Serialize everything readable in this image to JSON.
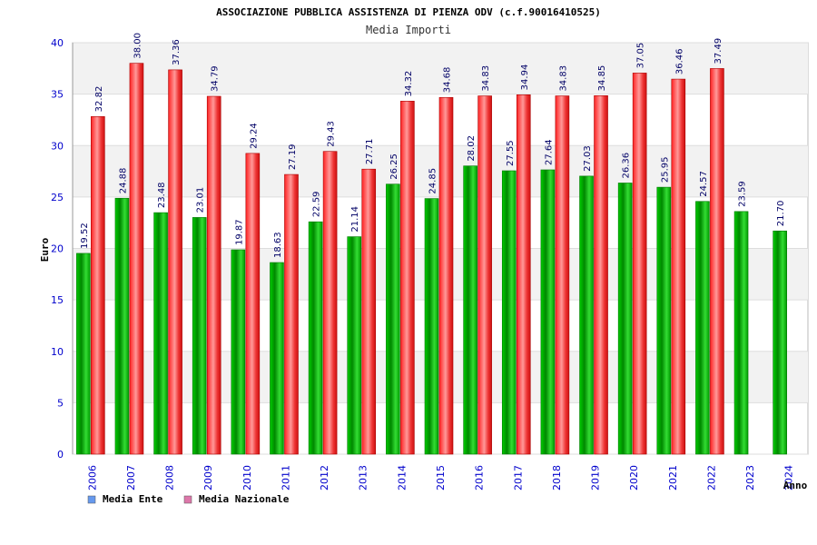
{
  "chart_data": {
    "type": "bar",
    "title": "ASSOCIAZIONE PUBBLICA ASSISTENZA DI PIENZA ODV (c.f.90016410525)",
    "subtitle": "Media Importi",
    "xlabel": "Anno",
    "ylabel": "Euro",
    "ylim": [
      0,
      40
    ],
    "yticks": [
      0,
      5,
      10,
      15,
      20,
      25,
      30,
      35,
      40
    ],
    "grid": true,
    "legend_position": "bottom-left",
    "categories": [
      "2006",
      "2007",
      "2008",
      "2009",
      "2010",
      "2011",
      "2012",
      "2013",
      "2014",
      "2015",
      "2016",
      "2017",
      "2018",
      "2019",
      "2020",
      "2021",
      "2022",
      "2023",
      "2024"
    ],
    "series": [
      {
        "name": "Media Ente",
        "legend_color": "#6699ee",
        "bar_color": "#00aa00",
        "values": [
          19.52,
          24.88,
          23.48,
          23.01,
          19.87,
          18.63,
          22.59,
          21.14,
          26.25,
          24.85,
          28.02,
          27.55,
          27.64,
          27.03,
          26.36,
          25.95,
          24.57,
          23.59,
          21.7
        ],
        "labels": [
          "19.52",
          "24.88",
          "23.48",
          "23.01",
          "19.87",
          "18.63",
          "22.59",
          "21.14",
          "26.25",
          "24.85",
          "28.02",
          "27.55",
          "27.64",
          "27.03",
          "26.36",
          "25.95",
          "24.57",
          "23.59",
          "21.70"
        ]
      },
      {
        "name": "Media Nazionale",
        "legend_color": "#dd77aa",
        "bar_color": "#ee2222",
        "values": [
          32.82,
          38.0,
          37.36,
          34.79,
          29.24,
          27.19,
          29.43,
          27.71,
          34.32,
          34.68,
          34.83,
          34.94,
          34.83,
          34.85,
          37.05,
          36.46,
          37.49,
          null,
          null
        ],
        "labels": [
          "32.82",
          "38.00",
          "37.36",
          "34.79",
          "29.24",
          "27.19",
          "29.43",
          "27.71",
          "34.32",
          "34.68",
          "34.83",
          "34.94",
          "34.83",
          "34.85",
          "37.05",
          "36.46",
          "37.49",
          null,
          null
        ]
      }
    ]
  }
}
